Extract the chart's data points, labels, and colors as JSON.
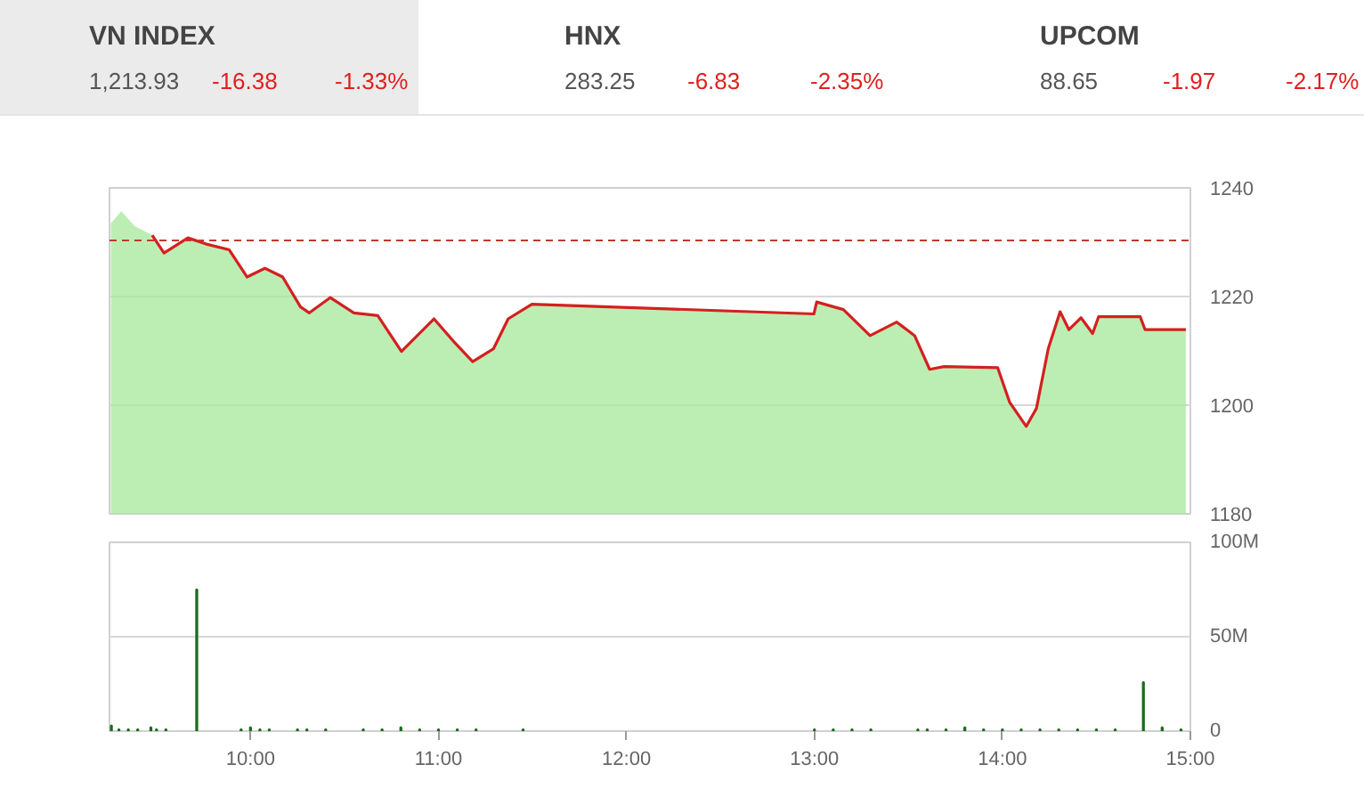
{
  "chart_data": [
    {
      "type": "other",
      "annotations": [
        "VN INDEX",
        "1,213.93",
        "-16.38",
        "-1.33%",
        "HNX",
        "283.25",
        "-6.83",
        "-2.35%",
        "UPCOM",
        "88.65",
        "-1.97",
        "-2.17%"
      ]
    },
    {
      "type": "area",
      "xlim": [
        9.25,
        15
      ],
      "ylim": [
        1180,
        1240
      ],
      "yticks": [
        1180,
        1200,
        1220,
        1240
      ],
      "tick_labels": "y",
      "grid": "y",
      "ref_lines": [
        {
          "axis": "y",
          "value": 1230.31,
          "color": "#c0392b",
          "line_style": "dashed"
        }
      ],
      "series": [
        {
          "type": "area",
          "color": "#a6e89a",
          "x": [
            9.257,
            9.313,
            9.383,
            9.477,
            9.54,
            9.667,
            9.761,
            9.887,
            9.982,
            10.077,
            10.171,
            10.266,
            10.313,
            10.424,
            10.55,
            10.677,
            10.803,
            10.976,
            11.087,
            11.182,
            11.293,
            11.371,
            11.497,
            12.997,
            13.012,
            13.154,
            13.296,
            13.438,
            13.533,
            13.613,
            13.69,
            13.975,
            14.039,
            14.127,
            14.181,
            14.244,
            14.307,
            14.354,
            14.418,
            14.48,
            14.512,
            14.733,
            14.759,
            14.976
          ],
          "values": [
            1233.5,
            1235.7,
            1233.0,
            1231.3,
            1228.0,
            1230.8,
            1229.7,
            1228.6,
            1223.6,
            1225.2,
            1223.6,
            1218.1,
            1217.0,
            1219.8,
            1217.0,
            1216.5,
            1209.9,
            1215.9,
            1211.5,
            1208.0,
            1210.4,
            1215.9,
            1218.6,
            1216.8,
            1219.0,
            1217.6,
            1212.8,
            1215.3,
            1212.8,
            1206.6,
            1207.1,
            1206.9,
            1200.5,
            1196.1,
            1199.4,
            1210.4,
            1217.2,
            1213.9,
            1216.1,
            1213.2,
            1216.3,
            1216.3,
            1213.9,
            1213.9
          ]
        },
        {
          "type": "line",
          "color": "#d42020",
          "x": [
            9.477,
            9.54,
            9.667,
            9.761,
            9.887,
            9.982,
            10.077,
            10.171,
            10.266,
            10.313,
            10.424,
            10.55,
            10.677,
            10.803,
            10.976,
            11.087,
            11.182,
            11.293,
            11.371,
            11.497,
            12.997,
            13.012,
            13.154,
            13.296,
            13.438,
            13.533,
            13.613,
            13.69,
            13.975,
            14.039,
            14.127,
            14.181,
            14.244,
            14.307,
            14.354,
            14.418,
            14.48,
            14.512,
            14.733,
            14.759,
            14.976
          ],
          "values": [
            1231.3,
            1228.0,
            1230.8,
            1229.7,
            1228.6,
            1223.6,
            1225.2,
            1223.6,
            1218.1,
            1217.0,
            1219.8,
            1217.0,
            1216.5,
            1209.9,
            1215.9,
            1211.5,
            1208.0,
            1210.4,
            1215.9,
            1218.6,
            1216.8,
            1219.0,
            1217.6,
            1212.8,
            1215.3,
            1212.8,
            1206.6,
            1207.1,
            1206.9,
            1200.5,
            1196.1,
            1199.4,
            1210.4,
            1217.2,
            1213.9,
            1216.1,
            1213.2,
            1216.3,
            1216.3,
            1213.9,
            1213.9
          ]
        }
      ]
    },
    {
      "type": "bar",
      "color": "#1a6b1a",
      "xlim": [
        9.25,
        15
      ],
      "ylim": [
        0,
        100
      ],
      "grid": "y",
      "xticks": [
        {
          "value": 10,
          "label": "10:00"
        },
        {
          "value": 11,
          "label": "11:00"
        },
        {
          "value": 12,
          "label": "12:00"
        },
        {
          "value": 13,
          "label": "13:00"
        },
        {
          "value": 14,
          "label": "14:00"
        },
        {
          "value": 15,
          "label": "15:00"
        }
      ],
      "yticks": [
        0,
        {
          "value": 50,
          "label": "50M"
        },
        {
          "value": 100,
          "label": "100M"
        }
      ],
      "x": [
        9.26,
        9.3,
        9.35,
        9.4,
        9.47,
        9.5,
        9.55,
        9.714,
        9.95,
        10.0,
        10.05,
        10.1,
        10.25,
        10.3,
        10.4,
        10.6,
        10.7,
        10.8,
        10.9,
        11.0,
        11.1,
        11.2,
        11.45,
        13.0,
        13.1,
        13.2,
        13.3,
        13.55,
        13.6,
        13.7,
        13.8,
        13.9,
        14.0,
        14.1,
        14.2,
        14.3,
        14.4,
        14.5,
        14.6,
        14.75,
        14.85,
        14.95
      ],
      "values": [
        3,
        1,
        1,
        1,
        2,
        1,
        1,
        75,
        1,
        2,
        1,
        1,
        1,
        1,
        1,
        1,
        1,
        2,
        1,
        1,
        1,
        1,
        1,
        1,
        1,
        1,
        1,
        1,
        1,
        1,
        2,
        1,
        1,
        1,
        1,
        1,
        1,
        1,
        1,
        26,
        2,
        1
      ]
    }
  ]
}
